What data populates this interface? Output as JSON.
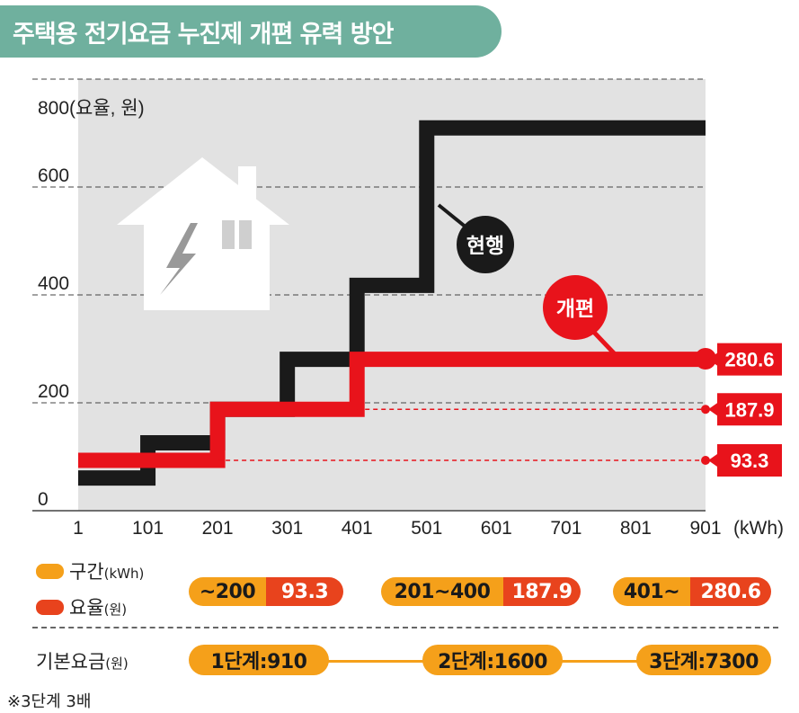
{
  "title": "주택용 전기요금 누진제 개편 유력 방안",
  "chart_data": {
    "type": "line",
    "step": true,
    "y_axis_label": "800(요율, 원)",
    "y_ticks": [
      "0",
      "200",
      "400",
      "600"
    ],
    "ylim": [
      0,
      800
    ],
    "x_ticks": [
      "1",
      "101",
      "201",
      "301",
      "401",
      "501",
      "601",
      "701",
      "801",
      "901"
    ],
    "x_unit": "(kWh)",
    "series": [
      {
        "name": "현행",
        "color": "#1a1a1a",
        "points": [
          [
            1,
            60.7
          ],
          [
            101,
            60.7
          ],
          [
            101,
            125.9
          ],
          [
            201,
            125.9
          ],
          [
            201,
            187.9
          ],
          [
            301,
            187.9
          ],
          [
            301,
            280.6
          ],
          [
            401,
            280.6
          ],
          [
            401,
            417.7
          ],
          [
            501,
            417.7
          ],
          [
            501,
            709.5
          ],
          [
            901,
            709.5
          ]
        ]
      },
      {
        "name": "개편",
        "color": "#e8131b",
        "points": [
          [
            1,
            93.3
          ],
          [
            201,
            93.3
          ],
          [
            201,
            187.9
          ],
          [
            401,
            187.9
          ],
          [
            401,
            280.6
          ],
          [
            901,
            280.6
          ]
        ]
      }
    ],
    "value_labels": [
      "280.6",
      "187.9",
      "93.3"
    ],
    "reference_values": [
      280.6,
      187.9,
      93.3
    ]
  },
  "legend": {
    "section_label": "구간",
    "section_unit": "(kWh)",
    "rate_label": "요율",
    "rate_unit": "(원)",
    "section_color": "#f5a01a",
    "rate_color": "#e8431d"
  },
  "tiers": [
    {
      "range": "~200",
      "rate": "93.3"
    },
    {
      "range": "201~400",
      "rate": "187.9"
    },
    {
      "range": "401~",
      "rate": "280.6"
    }
  ],
  "base_fee": {
    "label": "기본요금",
    "unit": "(원)",
    "levels": [
      "1단계:910",
      "2단계:1600",
      "3단계:7300"
    ]
  },
  "footnote": "※3단계 3배"
}
